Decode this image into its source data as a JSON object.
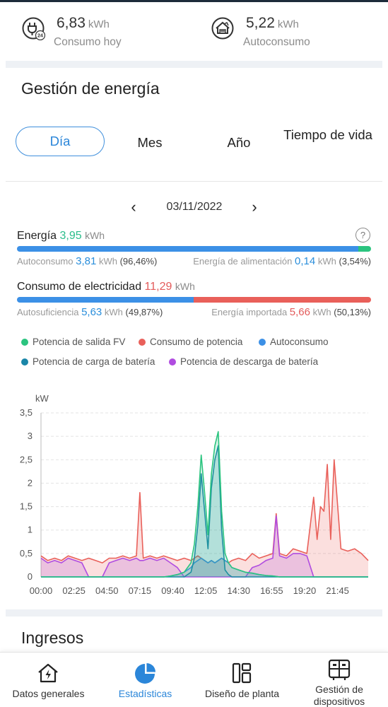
{
  "summary": {
    "consumo": {
      "value": "6,83",
      "unit": "kWh",
      "label": "Consumo hoy",
      "icon": "plug-24h-icon"
    },
    "autoconsumo": {
      "value": "5,22",
      "unit": "kWh",
      "label": "Autoconsumo",
      "icon": "house-solar-icon"
    }
  },
  "section_title": "Gestión de energía",
  "tabs": [
    {
      "label": "Día",
      "active": true
    },
    {
      "label": "Mes",
      "active": false
    },
    {
      "label": "Año",
      "active": false
    },
    {
      "label": "Tiempo de vida",
      "active": false
    }
  ],
  "date": {
    "text": "03/11/2022",
    "prev": "‹",
    "next": "›"
  },
  "energy": {
    "label": "Energía",
    "value": "3,95",
    "unit": "kWh",
    "help": "?",
    "autoconsumo": {
      "label": "Autoconsumo",
      "value": "3,81",
      "unit": "kWh",
      "pct": "(96,46%)",
      "fraction": 0.9646
    },
    "alimentacion": {
      "label": "Energía de alimentación",
      "value": "0,14",
      "unit": "kWh",
      "pct": "(3,54%)",
      "fraction": 0.0354
    }
  },
  "consumption": {
    "label": "Consumo de electricidad",
    "value": "11,29",
    "unit": "kWh",
    "autosuficiencia": {
      "label": "Autosuficiencia",
      "value": "5,63",
      "unit": "kWh",
      "pct": "(49,87%)",
      "fraction": 0.4987
    },
    "importada": {
      "label": "Energía importada",
      "value": "5,66",
      "unit": "kWh",
      "pct": "(50,13%)",
      "fraction": 0.5013
    }
  },
  "colors": {
    "green": "#2bc47f",
    "red": "#e9605a",
    "blue": "#3c90e6",
    "teal": "#1a86a8",
    "purple": "#b04ce0",
    "accent": "#2b86d9"
  },
  "legend": [
    {
      "label": "Potencia de salida FV",
      "color": "#2bc47f"
    },
    {
      "label": "Consumo de potencia",
      "color": "#e9605a"
    },
    {
      "label": "Autoconsumo",
      "color": "#3c90e6"
    },
    {
      "label": "Potencia de carga de batería",
      "color": "#1a86a8"
    },
    {
      "label": "Potencia de descarga de batería",
      "color": "#b04ce0"
    }
  ],
  "chart_data": {
    "type": "area",
    "ylabel": "kW",
    "ylim": [
      0,
      3.5
    ],
    "yticks": [
      "0",
      "0,5",
      "1",
      "1,5",
      "2",
      "2,5",
      "3",
      "3,5"
    ],
    "xticks": [
      "00:00",
      "02:25",
      "04:50",
      "07:15",
      "09:40",
      "12:05",
      "14:30",
      "16:55",
      "19:20",
      "21:45"
    ],
    "grid": true,
    "x_hours": [
      0,
      0.5,
      1,
      1.5,
      2,
      2.5,
      3,
      3.5,
      4,
      4.5,
      5,
      5.5,
      6,
      6.5,
      7,
      7.25,
      7.5,
      8,
      8.5,
      9,
      9.5,
      10,
      10.5,
      11,
      11.25,
      11.5,
      11.75,
      12,
      12.25,
      12.5,
      12.75,
      13,
      13.25,
      13.5,
      13.75,
      14,
      14.5,
      15,
      15.5,
      16,
      16.5,
      17,
      17.25,
      17.5,
      18,
      18.5,
      19,
      19.5,
      20,
      20.25,
      20.5,
      20.75,
      21,
      21.25,
      21.5,
      22,
      22.5,
      23,
      23.5,
      24
    ],
    "series": [
      {
        "name": "Potencia de salida FV",
        "values": [
          0,
          0,
          0,
          0,
          0,
          0,
          0,
          0,
          0,
          0,
          0,
          0,
          0,
          0,
          0,
          0,
          0,
          0,
          0,
          0,
          0.02,
          0.05,
          0.1,
          0.3,
          0.7,
          1.5,
          2.6,
          1.8,
          0.9,
          2.2,
          2.8,
          3.1,
          1.4,
          0.5,
          0.3,
          0.2,
          0.15,
          0.1,
          0.08,
          0.05,
          0.03,
          0.02,
          0.01,
          0,
          0,
          0,
          0,
          0,
          0,
          0,
          0,
          0,
          0,
          0,
          0,
          0,
          0,
          0,
          0,
          0
        ]
      },
      {
        "name": "Consumo de potencia",
        "values": [
          0.45,
          0.35,
          0.4,
          0.35,
          0.45,
          0.4,
          0.35,
          0.4,
          0.35,
          0.3,
          0.4,
          0.4,
          0.45,
          0.4,
          0.45,
          1.8,
          0.4,
          0.45,
          0.4,
          0.45,
          0.4,
          0.35,
          0.4,
          0.35,
          0.4,
          0.45,
          0.4,
          0.35,
          0.3,
          0.35,
          0.3,
          0.35,
          0.4,
          0.35,
          0.3,
          0.35,
          0.4,
          0.35,
          0.5,
          0.4,
          0.45,
          0.5,
          1.35,
          0.5,
          0.45,
          0.6,
          0.55,
          0.5,
          1.7,
          0.8,
          1.5,
          1.4,
          2.4,
          0.8,
          2.5,
          0.6,
          0.55,
          0.6,
          0.5,
          0.35
        ]
      },
      {
        "name": "Autoconsumo",
        "values": [
          0,
          0,
          0,
          0,
          0,
          0,
          0,
          0,
          0,
          0,
          0,
          0,
          0,
          0,
          0,
          0,
          0,
          0,
          0,
          0,
          0.02,
          0.05,
          0.1,
          0.2,
          0.3,
          0.35,
          0.4,
          0.35,
          0.3,
          0.35,
          0.3,
          0.35,
          0.4,
          0.35,
          0.3,
          0.2,
          0.15,
          0.1,
          0.08,
          0.05,
          0.03,
          0.02,
          0.01,
          0,
          0,
          0,
          0,
          0,
          0,
          0,
          0,
          0,
          0,
          0,
          0,
          0,
          0,
          0,
          0,
          0
        ]
      },
      {
        "name": "Potencia de carga de batería",
        "values": [
          0,
          0,
          0,
          0,
          0,
          0,
          0,
          0,
          0,
          0,
          0,
          0,
          0,
          0,
          0,
          0,
          0,
          0,
          0,
          0,
          0,
          0,
          0,
          0.1,
          0.4,
          1.1,
          2.2,
          1.4,
          0.6,
          1.9,
          2.5,
          2.8,
          1.0,
          0.15,
          0.05,
          0,
          0,
          0,
          0,
          0,
          0,
          0,
          0,
          0,
          0,
          0,
          0,
          0,
          0,
          0,
          0,
          0,
          0,
          0,
          0,
          0,
          0,
          0,
          0,
          0
        ]
      },
      {
        "name": "Potencia de descarga de batería",
        "values": [
          0.4,
          0.3,
          0.35,
          0.3,
          0.4,
          0.35,
          0.3,
          0,
          0,
          0,
          0.3,
          0.35,
          0.4,
          0.35,
          0.4,
          0.35,
          0.35,
          0.4,
          0.35,
          0.4,
          0.3,
          0.2,
          0,
          0,
          0,
          0,
          0,
          0,
          0,
          0,
          0,
          0,
          0,
          0,
          0,
          0,
          0,
          0,
          0.2,
          0.25,
          0.35,
          0.4,
          1.3,
          0.45,
          0.4,
          0.5,
          0.5,
          0.45,
          0,
          0,
          0,
          0,
          0,
          0,
          0,
          0,
          0,
          0,
          0,
          0
        ]
      }
    ]
  },
  "ingresos_title": "Ingresos",
  "nav": [
    {
      "label": "Datos generales",
      "icon": "house-bolt-icon",
      "active": false
    },
    {
      "label": "Estadísticas",
      "icon": "pie-chart-icon",
      "active": true
    },
    {
      "label": "Diseño de planta",
      "icon": "layout-icon",
      "active": false
    },
    {
      "label": "Gestión de dispositivos",
      "icon": "devices-icon",
      "active": false
    }
  ]
}
